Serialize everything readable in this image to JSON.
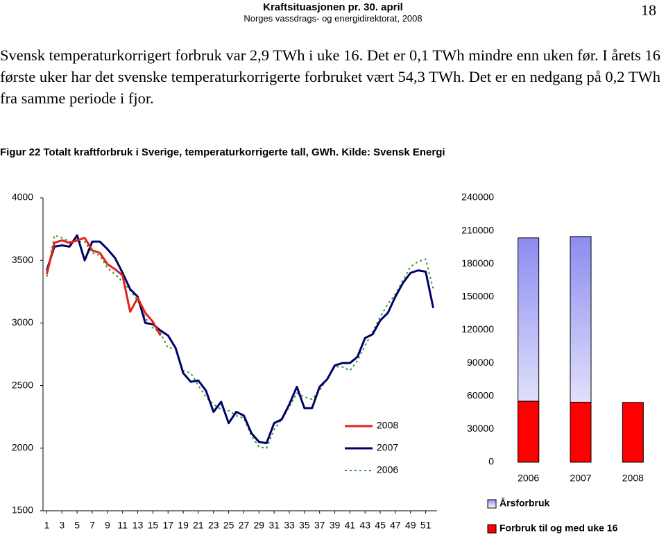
{
  "header": {
    "title": "Kraftsituasjonen pr. 30. april",
    "subtitle": "Norges vassdrags- og energidirektorat, 2008",
    "page": "18"
  },
  "paragraph": "Svensk temperaturkorrigert forbruk var 2,9 TWh i uke 16. Det er 0,1 TWh mindre enn uken før. I årets 16 første uker har det svenske temperaturkorrigerte forbruket vært 54,3 TWh. Det er en nedgang på 0,2 TWh fra samme periode i fjor.",
  "caption": "Figur 22 Totalt kraftforbruk i Sverige, temperaturkorrigerte tall, GWh. Kilde: Svensk Energi",
  "chart_data": [
    {
      "type": "line",
      "x": [
        1,
        2,
        3,
        4,
        5,
        6,
        7,
        8,
        9,
        10,
        11,
        12,
        13,
        14,
        15,
        16,
        17,
        18,
        19,
        20,
        21,
        22,
        23,
        24,
        25,
        26,
        27,
        28,
        29,
        30,
        31,
        32,
        33,
        34,
        35,
        36,
        37,
        38,
        39,
        40,
        41,
        42,
        43,
        44,
        45,
        46,
        47,
        48,
        49,
        50,
        51,
        52
      ],
      "xlim": [
        0.5,
        52.5
      ],
      "xticks": [
        1,
        3,
        5,
        7,
        9,
        11,
        13,
        15,
        17,
        19,
        21,
        23,
        25,
        27,
        29,
        31,
        33,
        35,
        37,
        39,
        41,
        43,
        45,
        47,
        49,
        51
      ],
      "ylim": [
        1500,
        4000
      ],
      "yticks": [
        1500,
        2000,
        2500,
        3000,
        3500,
        4000
      ],
      "series": [
        {
          "name": "2008",
          "color": "#e3211b",
          "line_style": "solid",
          "values": [
            3390,
            3640,
            3660,
            3640,
            3660,
            3680,
            3580,
            3560,
            3470,
            3430,
            3380,
            3090,
            3200,
            3080,
            3010,
            2900,
            null,
            null,
            null,
            null,
            null,
            null,
            null,
            null,
            null,
            null,
            null,
            null,
            null,
            null,
            null,
            null,
            null,
            null,
            null,
            null,
            null,
            null,
            null,
            null,
            null,
            null,
            null,
            null,
            null,
            null,
            null,
            null,
            null,
            null,
            null,
            null
          ]
        },
        {
          "name": "2007",
          "color": "#000066",
          "line_style": "solid",
          "values": [
            3420,
            3610,
            3620,
            3610,
            3700,
            3500,
            3650,
            3650,
            3590,
            3520,
            3400,
            3270,
            3210,
            3000,
            2990,
            2940,
            2900,
            2800,
            2600,
            2530,
            2540,
            2460,
            2290,
            2370,
            2200,
            2290,
            2260,
            2120,
            2050,
            2040,
            2200,
            2230,
            2350,
            2490,
            2320,
            2320,
            2490,
            2550,
            2660,
            2680,
            2680,
            2730,
            2880,
            2910,
            3020,
            3080,
            3210,
            3320,
            3400,
            3420,
            3410,
            3120
          ]
        },
        {
          "name": "2006",
          "color": "#339933",
          "line_style": "dotted",
          "values": [
            3370,
            3700,
            3680,
            3650,
            3650,
            3650,
            3560,
            3540,
            3440,
            3390,
            3330,
            3260,
            3180,
            3040,
            2960,
            2920,
            2800,
            2800,
            2620,
            2600,
            2500,
            2410,
            2350,
            2310,
            2300,
            2260,
            2240,
            2100,
            2010,
            2000,
            2150,
            2230,
            2330,
            2440,
            2410,
            2390,
            2460,
            2560,
            2650,
            2650,
            2620,
            2700,
            2820,
            2930,
            3050,
            3150,
            3230,
            3340,
            3450,
            3490,
            3510,
            3270
          ]
        }
      ]
    },
    {
      "type": "bar",
      "categories": [
        "2006",
        "2007",
        "2008"
      ],
      "ylim": [
        0,
        240000
      ],
      "yticks": [
        0,
        30000,
        60000,
        90000,
        120000,
        150000,
        180000,
        210000,
        240000
      ],
      "series": [
        {
          "name": "Årsforbruk",
          "color": "#8c8cf0",
          "values": [
            203600,
            204800,
            null
          ]
        },
        {
          "name": "Forbruk til og med uke 16",
          "color": "#ff0000",
          "values": [
            55400,
            54500,
            54300
          ]
        }
      ]
    }
  ]
}
